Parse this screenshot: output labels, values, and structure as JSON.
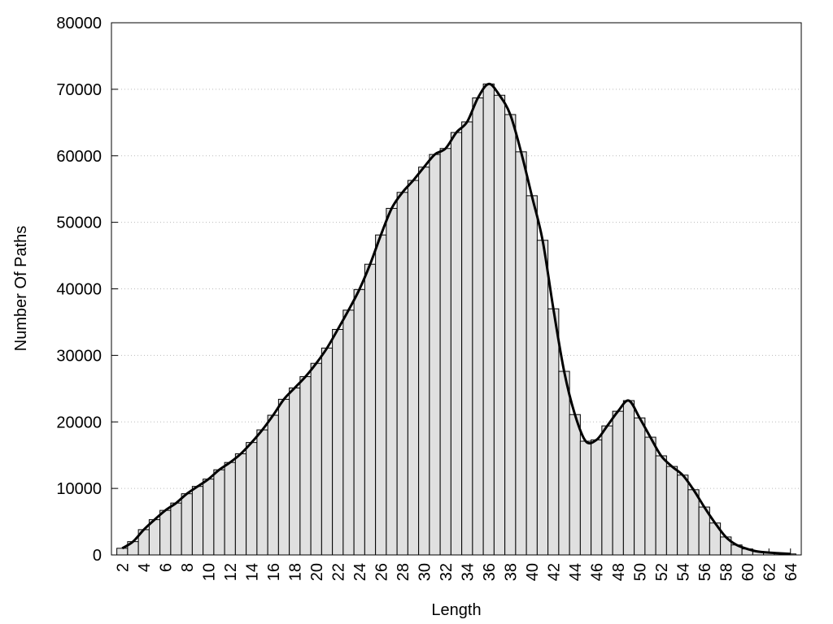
{
  "chart_data": {
    "type": "bar",
    "x_label": "Length",
    "y_label": "Number Of Paths",
    "x": [
      2,
      3,
      4,
      5,
      6,
      7,
      8,
      9,
      10,
      11,
      12,
      13,
      14,
      15,
      16,
      17,
      18,
      19,
      20,
      21,
      22,
      23,
      24,
      25,
      26,
      27,
      28,
      29,
      30,
      31,
      32,
      33,
      34,
      35,
      36,
      37,
      38,
      39,
      40,
      41,
      42,
      43,
      44,
      45,
      46,
      47,
      48,
      49,
      50,
      51,
      52,
      53,
      54,
      55,
      56,
      57,
      58,
      59,
      60,
      61,
      62,
      63,
      64
    ],
    "series": [
      {
        "color": "#e0e0e0",
        "line_color": "#000000",
        "values": [
          1000,
          2000,
          3800,
          5300,
          6700,
          7800,
          9200,
          10300,
          11400,
          12800,
          13900,
          15200,
          16900,
          18800,
          21000,
          23400,
          25100,
          26800,
          28800,
          31100,
          33900,
          36800,
          39900,
          43700,
          48100,
          52100,
          54500,
          56300,
          58300,
          60200,
          61100,
          63500,
          65100,
          68700,
          70800,
          69100,
          66200,
          60600,
          54000,
          47300,
          37000,
          27600,
          21100,
          17100,
          17300,
          19400,
          21600,
          23200,
          20600,
          17700,
          14900,
          13300,
          12000,
          9800,
          7200,
          4800,
          2700,
          1500,
          900,
          500,
          350,
          250,
          150
        ]
      }
    ],
    "xlim": [
      1,
      65
    ],
    "xticks": [
      2,
      4,
      6,
      8,
      10,
      12,
      14,
      16,
      18,
      20,
      22,
      24,
      26,
      28,
      30,
      32,
      34,
      36,
      38,
      40,
      42,
      44,
      46,
      48,
      50,
      52,
      54,
      56,
      58,
      60,
      62,
      64
    ],
    "ylim": [
      0,
      80000
    ],
    "yticks": [
      0,
      10000,
      20000,
      30000,
      40000,
      50000,
      60000,
      70000,
      80000
    ],
    "grid": true,
    "smooth_line": true
  }
}
